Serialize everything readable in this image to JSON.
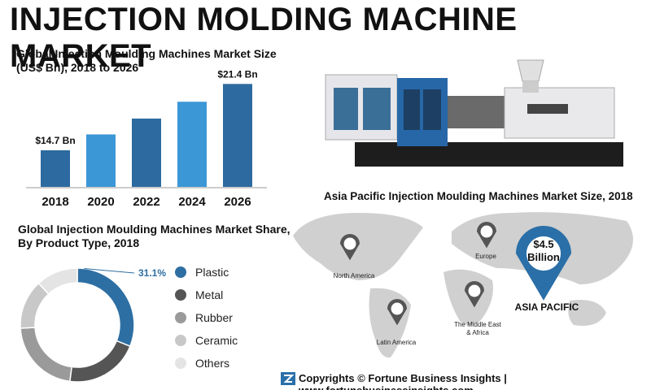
{
  "header": {
    "title": "INJECTION MOLDING MACHINE MARKET"
  },
  "chart_data": [
    {
      "type": "bar",
      "title": "Global Injection Moulding Machines Market Size (US$ Bn), 2018 to 2026",
      "categories": [
        "2018",
        "2020",
        "2022",
        "2024",
        "2026"
      ],
      "values": [
        14.7,
        16.3,
        17.9,
        19.6,
        21.4
      ],
      "value_labels": [
        "$14.7 Bn",
        null,
        null,
        null,
        "$21.4 Bn"
      ],
      "colors": [
        "#2d6a9f",
        "#3b97d6",
        "#2d6a9f",
        "#3b97d6",
        "#2d6a9f"
      ],
      "ylim": [
        11,
        22
      ]
    },
    {
      "type": "pie",
      "title": "Global Injection Moulding Machines Market Share, By Product Type, 2018",
      "categories": [
        "Plastic",
        "Metal",
        "Rubber",
        "Ceramic",
        "Others"
      ],
      "values": [
        31.1,
        21,
        22,
        14,
        11.9
      ],
      "value_labels": [
        "31.1%",
        null,
        null,
        null,
        null
      ],
      "colors": [
        "#2e6fa3",
        "#555555",
        "#9a9a9a",
        "#c8c8c8",
        "#e4e4e4"
      ]
    }
  ],
  "map": {
    "title": "Asia Pacific Injection Moulding Machines Market Size, 2018",
    "regions": [
      {
        "label_lines": [
          "North America"
        ]
      },
      {
        "label_lines": [
          "Europe"
        ]
      },
      {
        "label_lines": [
          "Latin America"
        ]
      },
      {
        "label_lines": [
          "The Middle East",
          "& Africa"
        ]
      }
    ],
    "highlight": {
      "region": "ASIA PACIFIC",
      "callout_lines": [
        "$4.5",
        "Billion"
      ]
    }
  },
  "footer": {
    "text": "Copyrights © Fortune Business Insights | www.fortunebusinessinsights.com"
  }
}
